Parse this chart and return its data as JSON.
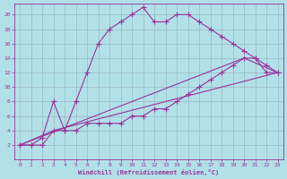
{
  "xlabel": "Windchill (Refroidissement éolien,°C)",
  "background_color": "#b2e0e8",
  "grid_color": "#8899aa",
  "line_color": "#993399",
  "xlim": [
    -0.5,
    23.5
  ],
  "ylim": [
    0,
    21.5
  ],
  "xticks": [
    0,
    1,
    2,
    3,
    4,
    5,
    6,
    7,
    8,
    9,
    10,
    11,
    12,
    13,
    14,
    15,
    16,
    17,
    18,
    19,
    20,
    21,
    22,
    23
  ],
  "yticks": [
    2,
    4,
    6,
    8,
    10,
    12,
    14,
    16,
    18,
    20
  ],
  "curve1_x": [
    0,
    1,
    2,
    3,
    4,
    5,
    6,
    7,
    8,
    9,
    10,
    11,
    12,
    13,
    14,
    15,
    16,
    17,
    18,
    19,
    20,
    21,
    22,
    23
  ],
  "curve1_y": [
    2,
    2,
    3,
    8,
    4,
    8,
    12,
    16,
    18,
    19,
    20,
    21,
    19,
    19,
    20,
    20,
    19,
    18,
    17,
    16,
    15,
    14,
    13,
    12
  ],
  "curve2_x": [
    0,
    1,
    2,
    3,
    4,
    5,
    6,
    7,
    8,
    9,
    10,
    11,
    12,
    13,
    14,
    15,
    16,
    17,
    18,
    19,
    20,
    21,
    22,
    23
  ],
  "curve2_y": [
    2,
    2,
    2,
    4,
    4,
    4,
    5,
    5,
    5,
    5,
    6,
    6,
    7,
    7,
    8,
    9,
    10,
    11,
    12,
    13,
    14,
    14,
    12,
    12
  ],
  "curve3_x": [
    0,
    3,
    23
  ],
  "curve3_y": [
    2,
    4,
    12
  ],
  "curve4_x": [
    0,
    20,
    23
  ],
  "curve4_y": [
    2,
    14,
    12
  ]
}
